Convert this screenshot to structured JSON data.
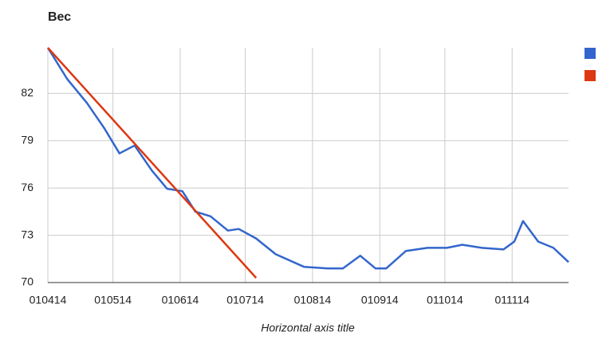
{
  "chart_data": {
    "type": "line",
    "title": "Вес",
    "x_label": "Horizontal axis title",
    "series": [
      {
        "color": "#3366cc",
        "x": [
          0,
          9,
          18,
          26,
          33,
          40,
          48,
          55,
          62,
          68,
          75,
          83,
          88,
          96,
          105,
          118,
          129,
          136,
          144,
          151,
          156,
          165,
          175,
          184,
          191,
          200,
          210,
          215,
          219,
          226,
          233,
          240
        ],
        "values": [
          84.9,
          82.9,
          81.4,
          79.8,
          78.2,
          78.7,
          77.1,
          75.95,
          75.8,
          74.5,
          74.2,
          73.3,
          73.4,
          72.8,
          71.8,
          71.0,
          70.9,
          70.9,
          71.7,
          70.9,
          70.9,
          72.0,
          72.2,
          72.2,
          72.4,
          72.2,
          72.1,
          72.6,
          73.9,
          72.6,
          72.2,
          71.3
        ]
      },
      {
        "color": "#dc3912",
        "x": [
          0,
          96
        ],
        "values": [
          84.9,
          70.3
        ]
      }
    ],
    "xlim": [
      0,
      240
    ],
    "xticks": [
      {
        "value": 0,
        "label": "010414"
      },
      {
        "value": 30,
        "label": "010514"
      },
      {
        "value": 61,
        "label": "010614"
      },
      {
        "value": 91,
        "label": "010714"
      },
      {
        "value": 122,
        "label": "010814"
      },
      {
        "value": 153,
        "label": "010914"
      },
      {
        "value": 183,
        "label": "011014"
      },
      {
        "value": 214,
        "label": "011114"
      }
    ],
    "ylim": [
      70,
      84.9
    ],
    "yticks": [
      70,
      73,
      76,
      79,
      82
    ],
    "grid": true,
    "legend": "right"
  }
}
